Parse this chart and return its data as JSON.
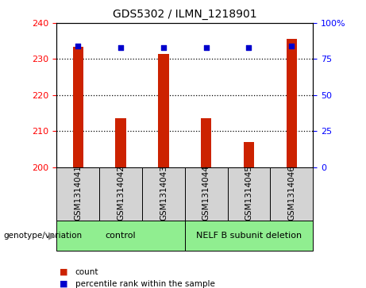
{
  "title": "GDS5302 / ILMN_1218901",
  "samples": [
    "GSM1314041",
    "GSM1314042",
    "GSM1314043",
    "GSM1314044",
    "GSM1314045",
    "GSM1314046"
  ],
  "counts": [
    233.5,
    213.5,
    231.5,
    213.5,
    207.0,
    235.5
  ],
  "percentile_ranks": [
    84,
    83,
    83,
    83,
    83,
    84
  ],
  "ylim_left": [
    200,
    240
  ],
  "ylim_right": [
    0,
    100
  ],
  "yticks_left": [
    200,
    210,
    220,
    230,
    240
  ],
  "yticks_right": [
    0,
    25,
    50,
    75,
    100
  ],
  "yticklabels_right": [
    "0",
    "25",
    "50",
    "75",
    "100%"
  ],
  "grid_lines": [
    210,
    220,
    230
  ],
  "groups": [
    {
      "label": "control",
      "indices": [
        0,
        1,
        2
      ],
      "color": "#90ee90"
    },
    {
      "label": "NELF B subunit deletion",
      "indices": [
        3,
        4,
        5
      ],
      "color": "#90ee90"
    }
  ],
  "bar_color": "#cc2200",
  "dot_color": "#0000cc",
  "bar_width": 0.25,
  "legend_items": [
    {
      "label": "count",
      "color": "#cc2200"
    },
    {
      "label": "percentile rank within the sample",
      "color": "#0000cc"
    }
  ],
  "genotype_label": "genotype/variation"
}
